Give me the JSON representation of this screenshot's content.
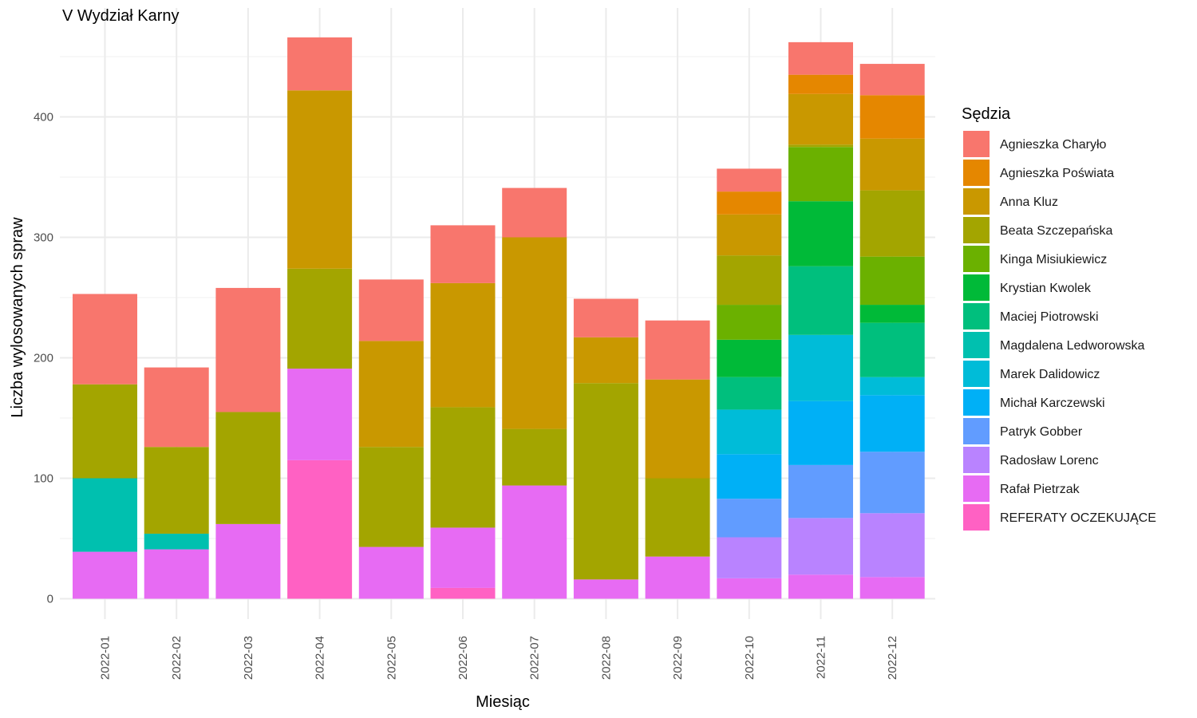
{
  "chart_data": {
    "type": "bar",
    "stacked": true,
    "title": "V Wydział Karny",
    "xlabel": "Miesiąc",
    "ylabel": "Liczba wylosowanych spraw",
    "ylim": [
      0,
      470
    ],
    "yticks": [
      0,
      100,
      200,
      300,
      400
    ],
    "grid": true,
    "legend_title": "Sędzia",
    "legend_position": "right",
    "categories": [
      "2022-01",
      "2022-02",
      "2022-03",
      "2022-04",
      "2022-05",
      "2022-06",
      "2022-07",
      "2022-08",
      "2022-09",
      "2022-10",
      "2022-11",
      "2022-12"
    ],
    "series": [
      {
        "name": "Agnieszka Charyło",
        "color": "#F8766D",
        "values": [
          75,
          66,
          103,
          44,
          51,
          48,
          41,
          32,
          49,
          19,
          27,
          26
        ]
      },
      {
        "name": "Agnieszka Poświata",
        "color": "#E58700",
        "values": [
          0,
          0,
          0,
          0,
          0,
          0,
          0,
          0,
          0,
          19,
          16,
          36
        ]
      },
      {
        "name": "Anna Kluz",
        "color": "#C99800",
        "values": [
          0,
          0,
          0,
          148,
          88,
          103,
          159,
          38,
          82,
          34,
          42,
          43
        ]
      },
      {
        "name": "Beata Szczepańska",
        "color": "#A3A500",
        "values": [
          78,
          72,
          93,
          83,
          83,
          100,
          47,
          163,
          65,
          41,
          2,
          55
        ]
      },
      {
        "name": "Kinga Misiukiewicz",
        "color": "#6BB100",
        "values": [
          0,
          0,
          0,
          0,
          0,
          0,
          0,
          0,
          0,
          29,
          45,
          40
        ]
      },
      {
        "name": "Krystian Kwolek",
        "color": "#00BA38",
        "values": [
          0,
          0,
          0,
          0,
          0,
          0,
          0,
          0,
          0,
          31,
          54,
          15
        ]
      },
      {
        "name": "Maciej Piotrowski",
        "color": "#00BF7D",
        "values": [
          0,
          0,
          0,
          0,
          0,
          0,
          0,
          0,
          0,
          27,
          57,
          45
        ]
      },
      {
        "name": "Magdalena Ledworowska",
        "color": "#00C0AF",
        "values": [
          61,
          13,
          0,
          0,
          0,
          0,
          0,
          0,
          0,
          0,
          0,
          0
        ]
      },
      {
        "name": "Marek Dalidowicz",
        "color": "#00BCD8",
        "values": [
          0,
          0,
          0,
          0,
          0,
          0,
          0,
          0,
          0,
          37,
          55,
          15
        ]
      },
      {
        "name": "Michał Karczewski",
        "color": "#00B0F6",
        "values": [
          0,
          0,
          0,
          0,
          0,
          0,
          0,
          0,
          0,
          37,
          53,
          47
        ]
      },
      {
        "name": "Patryk Gobber",
        "color": "#619CFF",
        "values": [
          0,
          0,
          0,
          0,
          0,
          0,
          0,
          0,
          0,
          32,
          44,
          51
        ]
      },
      {
        "name": "Radosław Lorenc",
        "color": "#B983FF",
        "values": [
          0,
          0,
          0,
          0,
          0,
          0,
          0,
          0,
          0,
          34,
          47,
          53
        ]
      },
      {
        "name": "Rafał Pietrzak",
        "color": "#E76BF3",
        "values": [
          39,
          41,
          62,
          76,
          43,
          50,
          94,
          16,
          35,
          17,
          20,
          18
        ]
      },
      {
        "name": "REFERATY OCZEKUJĄCE",
        "color": "#FF61C3",
        "values": [
          0,
          0,
          0,
          115,
          0,
          9,
          0,
          0,
          0,
          0,
          0,
          0
        ]
      }
    ]
  }
}
